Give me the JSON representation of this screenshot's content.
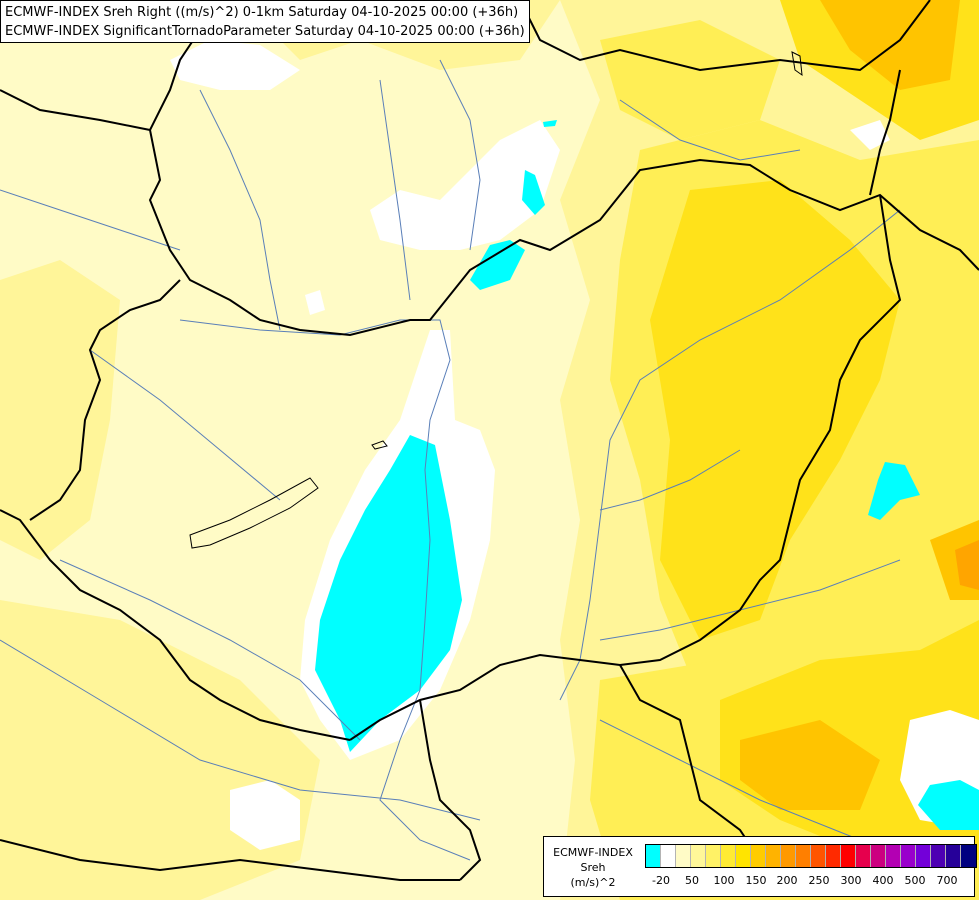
{
  "title": {
    "line1": "ECMWF-INDEX Sreh Right ((m/s)^2) 0-1km Saturday 04-10-2025 00:00 (+36h)",
    "line2": "ECMWF-INDEX SignificantTornadoParameter Saturday 04-10-2025 00:00 (+36h)"
  },
  "legend": {
    "source_label": "ECMWF-INDEX",
    "variable_label": "Sreh",
    "unit_label": "(m/s)^2",
    "colors": [
      "#00ffff",
      "#ffffff",
      "#fffbc6",
      "#fff799",
      "#fff266",
      "#ffeb33",
      "#ffe400",
      "#ffcc00",
      "#ffb300",
      "#ff9900",
      "#ff7f00",
      "#ff5500",
      "#ff2a00",
      "#ff0000",
      "#e6004d",
      "#cc0080",
      "#b300b3",
      "#9900cc",
      "#7300d9",
      "#4d00b3",
      "#260099",
      "#000080"
    ],
    "tick_labels": [
      "-20",
      "50",
      "100",
      "150",
      "200",
      "250",
      "300",
      "400",
      "500",
      "700"
    ]
  },
  "map_colors": {
    "background": "#fffbc6",
    "yellow_light": "#fff599",
    "yellow_mid": "#ffee55",
    "yellow_strong": "#ffe21a",
    "orange": "#ffc400",
    "orange_dark": "#ffa500",
    "white": "#ffffff",
    "cyan": "#00ffff",
    "borders": "#000000",
    "rivers": "#5a7fb8"
  }
}
